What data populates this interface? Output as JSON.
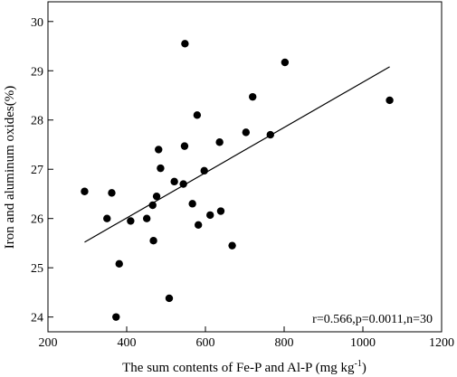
{
  "chart_data": {
    "type": "scatter",
    "xlabel_main": "The sum contents of Fe-P and Al-P (mg kg",
    "xlabel_sup": "-1",
    "xlabel_close": ")",
    "ylabel": "Iron and aluminum oxides(%)",
    "xlim": [
      200,
      1200
    ],
    "ylim": [
      23.7,
      30.4
    ],
    "xticks": [
      "200",
      "400",
      "600",
      "800",
      "1000",
      "1200"
    ],
    "yticks": [
      "24",
      "25",
      "26",
      "27",
      "28",
      "29",
      "30"
    ],
    "annotation": "r=0.566,p=0.0011,n=30",
    "grid": false,
    "regression_line": {
      "x": [
        293,
        1068
      ],
      "y": [
        25.52,
        29.08
      ]
    },
    "points": [
      {
        "x": 293,
        "y": 26.55
      },
      {
        "x": 350,
        "y": 26.0
      },
      {
        "x": 362,
        "y": 26.52
      },
      {
        "x": 373,
        "y": 24.0
      },
      {
        "x": 381,
        "y": 25.08
      },
      {
        "x": 410,
        "y": 25.95
      },
      {
        "x": 451,
        "y": 26.0
      },
      {
        "x": 466,
        "y": 26.27
      },
      {
        "x": 468,
        "y": 25.55
      },
      {
        "x": 476,
        "y": 26.45
      },
      {
        "x": 481,
        "y": 27.4
      },
      {
        "x": 486,
        "y": 27.02
      },
      {
        "x": 508,
        "y": 24.38
      },
      {
        "x": 521,
        "y": 26.75
      },
      {
        "x": 544,
        "y": 26.7
      },
      {
        "x": 547,
        "y": 27.47
      },
      {
        "x": 548,
        "y": 29.55
      },
      {
        "x": 567,
        "y": 26.3
      },
      {
        "x": 579,
        "y": 28.1
      },
      {
        "x": 582,
        "y": 25.87
      },
      {
        "x": 597,
        "y": 26.97
      },
      {
        "x": 612,
        "y": 26.07
      },
      {
        "x": 636,
        "y": 27.55
      },
      {
        "x": 639,
        "y": 26.15
      },
      {
        "x": 668,
        "y": 25.45
      },
      {
        "x": 703,
        "y": 27.75
      },
      {
        "x": 720,
        "y": 28.47
      },
      {
        "x": 765,
        "y": 27.7
      },
      {
        "x": 802,
        "y": 29.17
      },
      {
        "x": 1068,
        "y": 28.4
      }
    ]
  }
}
